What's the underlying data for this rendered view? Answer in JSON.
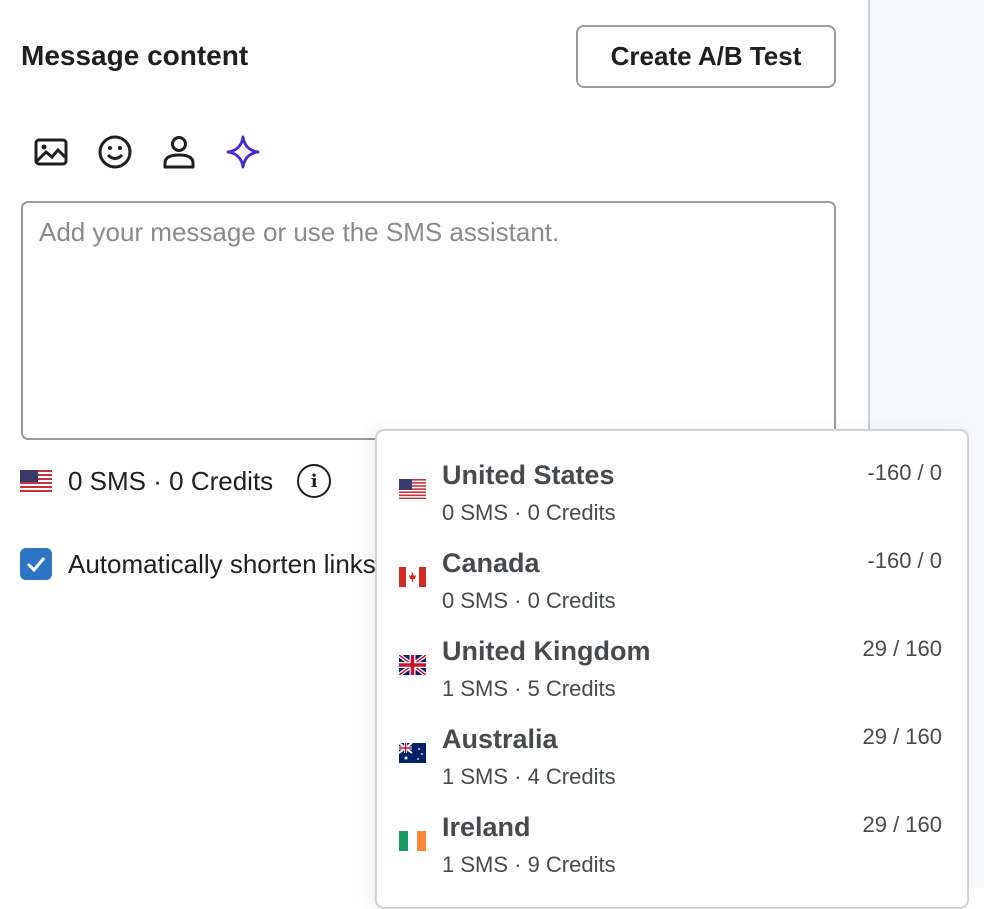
{
  "header": {
    "title": "Message content",
    "ab_test_label": "Create A/B Test"
  },
  "toolbar": {
    "icons": [
      "image-icon",
      "emoji-icon",
      "personalization-icon",
      "ai-assistant-sparkle-icon"
    ],
    "accent": "#4a2ad0"
  },
  "message": {
    "placeholder": "Add your message or use the SMS assistant.",
    "value": ""
  },
  "summary": {
    "text": "0 SMS · 0 Credits",
    "flag": "us"
  },
  "shorten_links": {
    "label": "Automatically shorten links",
    "checked": true,
    "color": "#2d74c4"
  },
  "countries": [
    {
      "name": "United States",
      "sub": "0 SMS · 0 Credits",
      "chars": "-160 / 0",
      "flag": "us"
    },
    {
      "name": "Canada",
      "sub": "0 SMS · 0 Credits",
      "chars": "-160 / 0",
      "flag": "ca"
    },
    {
      "name": "United Kingdom",
      "sub": "1 SMS · 5 Credits",
      "chars": "29 / 160",
      "flag": "gb"
    },
    {
      "name": "Australia",
      "sub": "1 SMS · 4 Credits",
      "chars": "29 / 160",
      "flag": "au"
    },
    {
      "name": "Ireland",
      "sub": "1 SMS · 9 Credits",
      "chars": "29 / 160",
      "flag": "ie"
    }
  ]
}
